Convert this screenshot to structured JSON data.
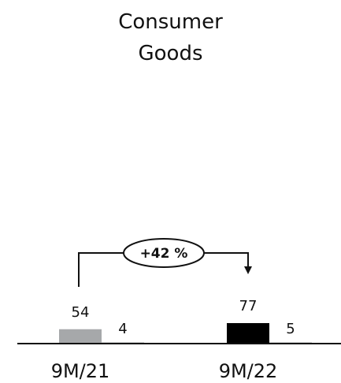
{
  "title_lines": [
    "Consumer",
    "Goods"
  ],
  "chart_data": {
    "type": "bar",
    "title": "Consumer Goods",
    "categories": [
      "9M/21",
      "9M/22"
    ],
    "series": [
      {
        "values": [
          54,
          77
        ],
        "colors": [
          "#a6a8aa",
          "#000000"
        ]
      },
      {
        "values": [
          4,
          5
        ],
        "color": "#a6a8aa"
      }
    ],
    "growth_label": "+42 %",
    "xlabel": "",
    "ylabel": ""
  }
}
